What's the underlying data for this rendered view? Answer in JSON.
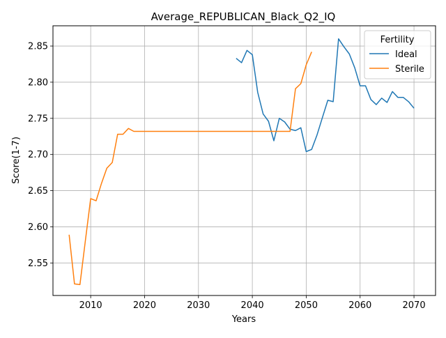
{
  "chart_data": {
    "type": "line",
    "title": "Average_REPUBLICAN_Black_Q2_IQ",
    "xlabel": "Years",
    "ylabel": "Score(1-7)",
    "xlim": [
      2003,
      2074
    ],
    "ylim": [
      2.505,
      2.878
    ],
    "xticks": [
      2010,
      2020,
      2030,
      2040,
      2050,
      2060,
      2070
    ],
    "yticks": [
      2.55,
      2.6,
      2.65,
      2.7,
      2.75,
      2.8,
      2.85
    ],
    "grid": true,
    "legend": {
      "title": "Fertility",
      "placement": "top-right"
    },
    "series": [
      {
        "name": "Ideal",
        "color": "#1f77b4",
        "points": [
          [
            2037,
            2.833
          ],
          [
            2038,
            2.827
          ],
          [
            2039,
            2.844
          ],
          [
            2040,
            2.838
          ],
          [
            2041,
            2.786
          ],
          [
            2042,
            2.756
          ],
          [
            2043,
            2.746
          ],
          [
            2044,
            2.719
          ],
          [
            2045,
            2.75
          ],
          [
            2046,
            2.745
          ],
          [
            2047,
            2.735
          ],
          [
            2048,
            2.733
          ],
          [
            2049,
            2.737
          ],
          [
            2050,
            2.704
          ],
          [
            2051,
            2.707
          ],
          [
            2052,
            2.727
          ],
          [
            2053,
            2.751
          ],
          [
            2054,
            2.775
          ],
          [
            2055,
            2.773
          ],
          [
            2056,
            2.86
          ],
          [
            2057,
            2.849
          ],
          [
            2058,
            2.839
          ],
          [
            2059,
            2.82
          ],
          [
            2060,
            2.795
          ],
          [
            2061,
            2.795
          ],
          [
            2062,
            2.776
          ],
          [
            2063,
            2.769
          ],
          [
            2064,
            2.778
          ],
          [
            2065,
            2.772
          ],
          [
            2066,
            2.787
          ],
          [
            2067,
            2.779
          ],
          [
            2068,
            2.779
          ],
          [
            2069,
            2.773
          ],
          [
            2070,
            2.764
          ]
        ]
      },
      {
        "name": "Sterile",
        "color": "#ff7f0e",
        "points": [
          [
            2006,
            2.589
          ],
          [
            2007,
            2.521
          ],
          [
            2008,
            2.52
          ],
          [
            2009,
            2.58
          ],
          [
            2010,
            2.639
          ],
          [
            2011,
            2.636
          ],
          [
            2012,
            2.66
          ],
          [
            2013,
            2.681
          ],
          [
            2014,
            2.689
          ],
          [
            2015,
            2.728
          ],
          [
            2016,
            2.728
          ],
          [
            2017,
            2.736
          ],
          [
            2018,
            2.732
          ],
          [
            2019,
            2.732
          ],
          [
            2020,
            2.732
          ],
          [
            2025,
            2.732
          ],
          [
            2030,
            2.732
          ],
          [
            2035,
            2.732
          ],
          [
            2040,
            2.732
          ],
          [
            2045,
            2.732
          ],
          [
            2047,
            2.732
          ],
          [
            2048,
            2.791
          ],
          [
            2049,
            2.798
          ],
          [
            2050,
            2.824
          ],
          [
            2051,
            2.842
          ]
        ]
      }
    ]
  }
}
